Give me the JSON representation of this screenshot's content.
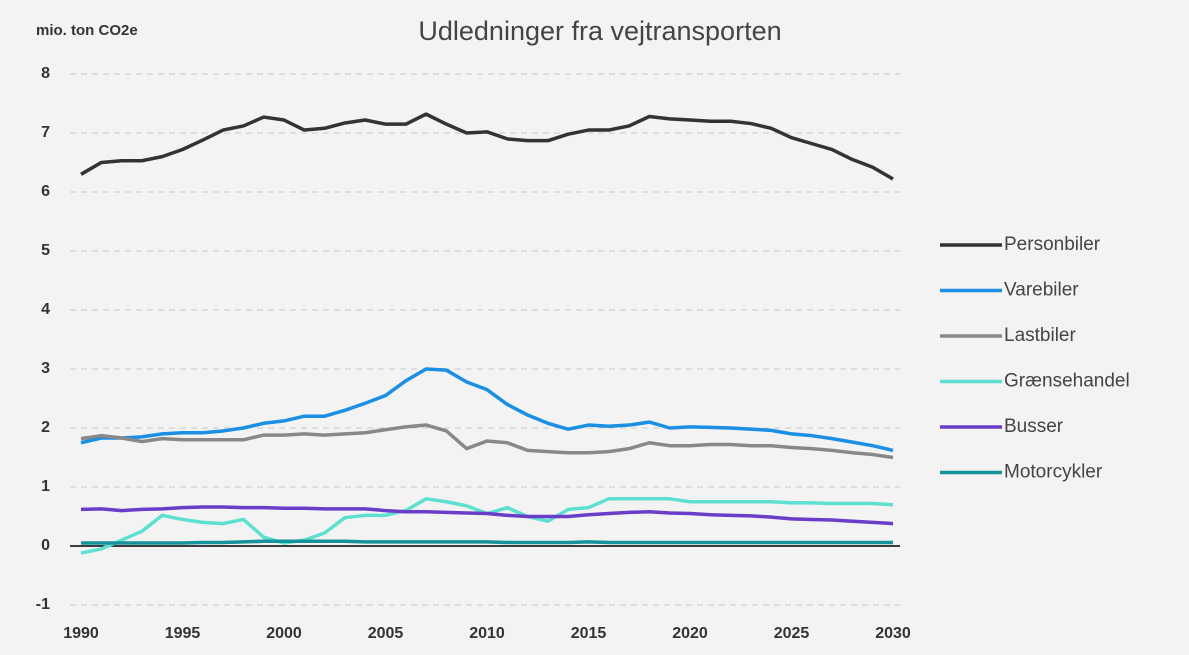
{
  "chart_data": {
    "type": "line",
    "title": "Udledninger fra vejtransporten",
    "y_label": "mio. ton CO2e",
    "x": [
      1990,
      1991,
      1992,
      1993,
      1994,
      1995,
      1996,
      1997,
      1998,
      1999,
      2000,
      2001,
      2002,
      2003,
      2004,
      2005,
      2006,
      2007,
      2008,
      2009,
      2010,
      2011,
      2012,
      2013,
      2014,
      2015,
      2016,
      2017,
      2018,
      2019,
      2020,
      2021,
      2022,
      2023,
      2024,
      2025,
      2026,
      2027,
      2028,
      2029,
      2030
    ],
    "series": [
      {
        "name": "Personbiler",
        "color": "#333333",
        "values": [
          6.3,
          6.5,
          6.53,
          6.53,
          6.6,
          6.72,
          6.88,
          7.05,
          7.12,
          7.27,
          7.22,
          7.05,
          7.08,
          7.17,
          7.22,
          7.15,
          7.15,
          7.32,
          7.15,
          7.0,
          7.02,
          6.9,
          6.87,
          6.87,
          6.98,
          7.05,
          7.05,
          7.12,
          7.28,
          7.24,
          7.22,
          7.2,
          7.2,
          7.16,
          7.08,
          6.92,
          6.82,
          6.72,
          6.55,
          6.42,
          6.22
        ]
      },
      {
        "name": "Varebiler",
        "color": "#1a8fe3",
        "values": [
          1.75,
          1.83,
          1.83,
          1.85,
          1.9,
          1.92,
          1.92,
          1.95,
          2.0,
          2.08,
          2.12,
          2.2,
          2.2,
          2.3,
          2.42,
          2.55,
          2.8,
          3.0,
          2.98,
          2.78,
          2.65,
          2.4,
          2.22,
          2.08,
          1.98,
          2.05,
          2.03,
          2.05,
          2.1,
          2.0,
          2.02,
          2.01,
          2.0,
          1.98,
          1.96,
          1.9,
          1.87,
          1.82,
          1.76,
          1.7,
          1.62
        ]
      },
      {
        "name": "Lastbiler",
        "color": "#888888",
        "values": [
          1.82,
          1.87,
          1.83,
          1.77,
          1.82,
          1.8,
          1.8,
          1.8,
          1.8,
          1.88,
          1.88,
          1.9,
          1.88,
          1.9,
          1.92,
          1.97,
          2.02,
          2.05,
          1.95,
          1.65,
          1.78,
          1.75,
          1.62,
          1.6,
          1.58,
          1.58,
          1.6,
          1.65,
          1.75,
          1.7,
          1.7,
          1.72,
          1.72,
          1.7,
          1.7,
          1.67,
          1.65,
          1.62,
          1.58,
          1.55,
          1.5
        ]
      },
      {
        "name": "Grænsehandel",
        "color": "#5ee0d0",
        "values": [
          -0.12,
          -0.05,
          0.1,
          0.25,
          0.52,
          0.45,
          0.4,
          0.38,
          0.45,
          0.15,
          0.05,
          0.1,
          0.22,
          0.48,
          0.52,
          0.52,
          0.6,
          0.8,
          0.75,
          0.68,
          0.55,
          0.65,
          0.5,
          0.42,
          0.62,
          0.65,
          0.8,
          0.8,
          0.8,
          0.8,
          0.75,
          0.75,
          0.75,
          0.75,
          0.75,
          0.73,
          0.73,
          0.72,
          0.72,
          0.72,
          0.7
        ]
      },
      {
        "name": "Busser",
        "color": "#6a3dc8",
        "values": [
          0.62,
          0.63,
          0.6,
          0.62,
          0.63,
          0.65,
          0.66,
          0.66,
          0.65,
          0.65,
          0.64,
          0.64,
          0.63,
          0.63,
          0.63,
          0.6,
          0.58,
          0.58,
          0.57,
          0.56,
          0.55,
          0.52,
          0.5,
          0.5,
          0.5,
          0.53,
          0.55,
          0.57,
          0.58,
          0.56,
          0.55,
          0.53,
          0.52,
          0.51,
          0.49,
          0.46,
          0.45,
          0.44,
          0.42,
          0.4,
          0.38
        ]
      },
      {
        "name": "Motorcykler",
        "color": "#14939a",
        "values": [
          0.05,
          0.05,
          0.05,
          0.05,
          0.05,
          0.05,
          0.06,
          0.06,
          0.07,
          0.08,
          0.08,
          0.08,
          0.08,
          0.08,
          0.07,
          0.07,
          0.07,
          0.07,
          0.07,
          0.07,
          0.07,
          0.06,
          0.06,
          0.06,
          0.06,
          0.07,
          0.06,
          0.06,
          0.06,
          0.06,
          0.06,
          0.06,
          0.06,
          0.06,
          0.06,
          0.06,
          0.06,
          0.06,
          0.06,
          0.06,
          0.06
        ]
      }
    ],
    "xlim": [
      1990,
      2030
    ],
    "xticks": [
      1990,
      1995,
      2000,
      2005,
      2010,
      2015,
      2020,
      2025,
      2030
    ],
    "ylim": [
      -1,
      8
    ],
    "yticks": [
      -1,
      0,
      1,
      2,
      3,
      4,
      5,
      6,
      7,
      8
    ],
    "grid": true,
    "legend": "right"
  }
}
